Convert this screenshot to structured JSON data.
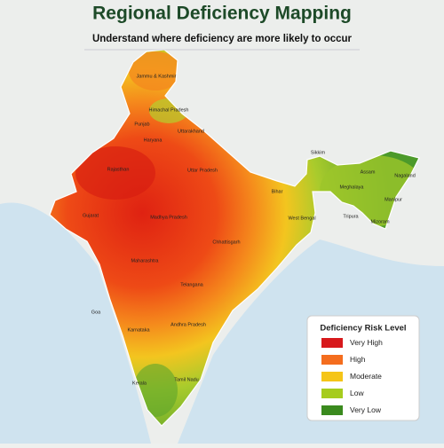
{
  "header": {
    "title": "Regional Deficiency Mapping",
    "subtitle": "Understand where deficiency are more likely to occur"
  },
  "map": {
    "labels": [
      "Jammu & Kashmir",
      "Himachal Pradesh",
      "Punjab",
      "Uttarakhand",
      "Haryana",
      "Rajasthan",
      "Uttar Pradesh",
      "Bihar",
      "Sikkim",
      "Assam",
      "Nagaland",
      "Meghalaya",
      "Manipur",
      "Tripura",
      "Mizoram",
      "West Bengal",
      "Gujarat",
      "Madhya Pradesh",
      "Chhattisgarh",
      "Maharashtra",
      "Telangana",
      "Goa",
      "Andhra Pradesh",
      "Karnataka",
      "Kerala",
      "Tamil Nadu"
    ]
  },
  "legend": {
    "title": "Deficiency Risk Level",
    "items": [
      {
        "name": "Very High",
        "color": "#d7191c"
      },
      {
        "name": "High",
        "color": "#f46d1e"
      },
      {
        "name": "Moderate",
        "color": "#f5c518"
      },
      {
        "name": "Low",
        "color": "#a6cc1e"
      },
      {
        "name": "Very Low",
        "color": "#3a8a1e"
      }
    ]
  }
}
